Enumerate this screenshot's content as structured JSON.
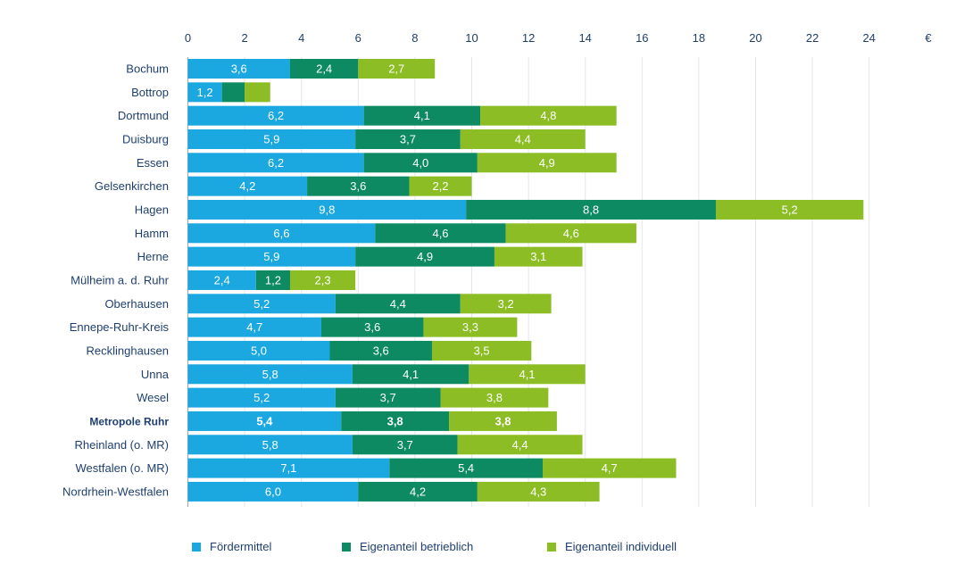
{
  "chart_data": {
    "type": "bar",
    "orientation": "horizontal",
    "stacked": true,
    "unit": "€",
    "xlim": [
      0,
      24
    ],
    "x_ticks": [
      "0",
      "2",
      "4",
      "6",
      "8",
      "10",
      "12",
      "14",
      "16",
      "18",
      "20",
      "22",
      "24"
    ],
    "grid": true,
    "legend_position": "bottom",
    "categories": [
      "Bochum",
      "Bottrop",
      "Dortmund",
      "Duisburg",
      "Essen",
      "Gelsenkirchen",
      "Hagen",
      "Hamm",
      "Herne",
      "Mülheim a. d. Ruhr",
      "Oberhausen",
      "Ennepe-Ruhr-Kreis",
      "Recklinghausen",
      "Unna",
      "Wesel",
      "Metropole Ruhr",
      "Rheinland (o. MR)",
      "Westfalen (o. MR)",
      "Nordrhein-Westfalen"
    ],
    "highlighted_category": "Metropole Ruhr",
    "series": [
      {
        "name": "Fördermittel",
        "color": "#1ba7e0",
        "values": [
          3.6,
          1.2,
          6.2,
          5.9,
          6.2,
          4.2,
          9.8,
          6.6,
          5.9,
          2.4,
          5.2,
          4.7,
          5.0,
          5.8,
          5.2,
          5.4,
          5.8,
          7.1,
          6.0
        ],
        "labels": [
          "3,6",
          "1,2",
          "6,2",
          "5,9",
          "6,2",
          "4,2",
          "9,8",
          "6,6",
          "5,9",
          "2,4",
          "5,2",
          "4,7",
          "5,0",
          "5,8",
          "5,2",
          "5,4",
          "5,8",
          "7,1",
          "6,0"
        ]
      },
      {
        "name": "Eigenanteil betrieblich",
        "color": "#0e8a63",
        "values": [
          2.4,
          0.8,
          4.1,
          3.7,
          4.0,
          3.6,
          8.8,
          4.6,
          4.9,
          1.2,
          4.4,
          3.6,
          3.6,
          4.1,
          3.7,
          3.8,
          3.7,
          5.4,
          4.2
        ],
        "labels": [
          "2,4",
          "",
          "4,1",
          "3,7",
          "4,0",
          "3,6",
          "8,8",
          "4,6",
          "4,9",
          "1,2",
          "4,4",
          "3,6",
          "3,6",
          "4,1",
          "3,7",
          "3,8",
          "3,7",
          "5,4",
          "4,2"
        ]
      },
      {
        "name": "Eigenanteil individuell",
        "color": "#8cbd24",
        "values": [
          2.7,
          0.9,
          4.8,
          4.4,
          4.9,
          2.2,
          5.2,
          4.6,
          3.1,
          2.3,
          3.2,
          3.3,
          3.5,
          4.1,
          3.8,
          3.8,
          4.4,
          4.7,
          4.3
        ],
        "labels": [
          "2,7",
          "",
          "4,8",
          "4,4",
          "4,9",
          "2,2",
          "5,2",
          "4,6",
          "3,1",
          "2,3",
          "3,2",
          "3,3",
          "3,5",
          "4,1",
          "3,8",
          "3,8",
          "4,4",
          "4,7",
          "4,3"
        ]
      }
    ]
  }
}
